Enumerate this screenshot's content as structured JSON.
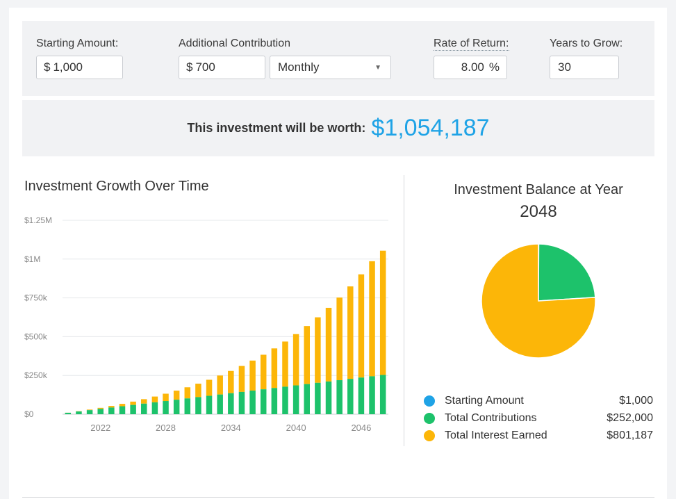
{
  "inputs": {
    "starting_amount": {
      "label": "Starting Amount:",
      "prefix": "$",
      "value": "1,000"
    },
    "additional_contribution": {
      "label": "Additional Contribution",
      "prefix": "$",
      "value": "700"
    },
    "frequency": {
      "value": "Monthly"
    },
    "rate_of_return": {
      "label": "Rate of Return:",
      "value": "8.00",
      "suffix": "%"
    },
    "years_to_grow": {
      "label": "Years to Grow:",
      "value": "30"
    }
  },
  "result": {
    "label": "This investment will be worth:",
    "value": "$1,054,187"
  },
  "growth_chart": {
    "title": "Investment Growth Over Time"
  },
  "pie_chart": {
    "title_line1": "Investment Balance at Year",
    "title_line2": "2048"
  },
  "legend": [
    {
      "label": "Starting Amount",
      "value": "$1,000",
      "color": "#1fa3e6"
    },
    {
      "label": "Total Contributions",
      "value": "$252,000",
      "color": "#1dc26b"
    },
    {
      "label": "Total Interest Earned",
      "value": "$801,187",
      "color": "#fcb608"
    }
  ],
  "colors": {
    "accent": "#1fa3e6",
    "contributions": "#1dc26b",
    "interest": "#fcb608"
  },
  "chart_data": [
    {
      "type": "bar",
      "title": "Investment Growth Over Time",
      "stacked": true,
      "x": [
        2019,
        2020,
        2021,
        2022,
        2023,
        2024,
        2025,
        2026,
        2027,
        2028,
        2029,
        2030,
        2031,
        2032,
        2033,
        2034,
        2035,
        2036,
        2037,
        2038,
        2039,
        2040,
        2041,
        2042,
        2043,
        2044,
        2045,
        2046,
        2047,
        2048
      ],
      "x_tick_labels": [
        "2022",
        "2028",
        "2034",
        "2040",
        "2046"
      ],
      "y_tick_labels": [
        "$0",
        "$250k",
        "$500k",
        "$750k",
        "$1M",
        "$1.25M"
      ],
      "ylim": [
        0,
        1250000
      ],
      "grid": true,
      "series": [
        {
          "name": "Total Contributions",
          "color": "#1dc26b",
          "values": [
            9400,
            17800,
            26200,
            34600,
            43000,
            51400,
            59800,
            68200,
            76600,
            85000,
            93400,
            101800,
            110200,
            118600,
            127000,
            135400,
            143800,
            152200,
            160600,
            169000,
            177400,
            185800,
            194200,
            202600,
            211000,
            219400,
            227800,
            236200,
            244600,
            253000
          ]
        },
        {
          "name": "Total Interest Earned",
          "color": "#fcb608",
          "values": [
            380,
            1570,
            3610,
            6550,
            10450,
            15400,
            21450,
            28700,
            37250,
            47200,
            58650,
            71750,
            86650,
            103500,
            122400,
            143600,
            167250,
            193600,
            222850,
            255250,
            291050,
            330600,
            374150,
            422100,
            474800,
            532650,
            596050,
            665550,
            741600,
            801187
          ]
        }
      ]
    },
    {
      "type": "pie",
      "title": "Investment Balance at Year 2048",
      "categories": [
        "Starting Amount",
        "Total Contributions",
        "Total Interest Earned"
      ],
      "values": [
        1000,
        252000,
        801187
      ],
      "colors": [
        "#1fa3e6",
        "#1dc26b",
        "#fcb608"
      ]
    }
  ]
}
